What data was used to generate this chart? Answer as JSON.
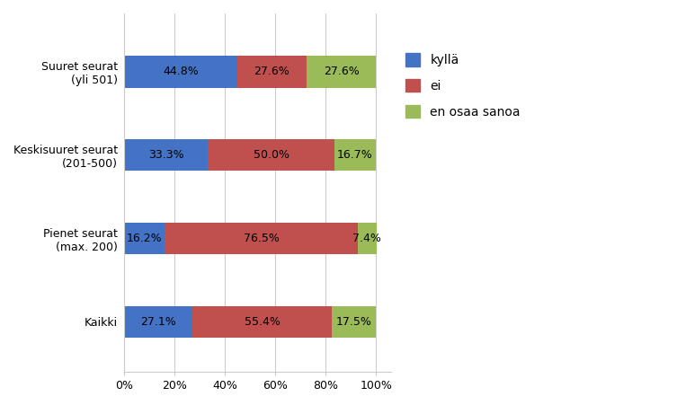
{
  "categories": [
    "Kaikki",
    "Pienet seurat\n(max. 200)",
    "Keskisuuret seurat\n(201-500)",
    "Suuret seurat\n(yli 501)"
  ],
  "kylla": [
    27.1,
    16.2,
    33.3,
    44.8
  ],
  "ei": [
    55.4,
    76.5,
    50.0,
    27.6
  ],
  "en_osaa_sanoa": [
    17.5,
    7.4,
    16.7,
    27.6
  ],
  "color_kylla": "#4472C4",
  "color_ei": "#C0504D",
  "color_en": "#9BBB59",
  "legend_labels": [
    "kyllä",
    "ei",
    "en osaa sanoa"
  ],
  "background_color": "#FFFFFF",
  "plot_bg_color": "#FFFFFF",
  "xlabel_ticks": [
    0,
    20,
    40,
    60,
    80,
    100
  ],
  "xlabel_tick_labels": [
    "0%",
    "20%",
    "40%",
    "60%",
    "80%",
    "100%"
  ],
  "bar_height": 0.38,
  "fontsize_labels": 9,
  "fontsize_ticks": 9,
  "fontsize_legend": 10,
  "xlim_max": 106
}
